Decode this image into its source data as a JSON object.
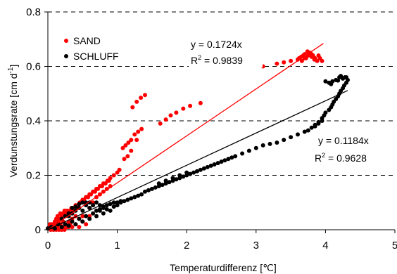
{
  "chart_data": {
    "type": "scatter",
    "title": "",
    "xlabel": "Temperaturdifferenz [℃]",
    "ylabel": "Verdunstungsrate [cm d",
    "ylabel_sup": "-1",
    "ylabel_end": "]",
    "xlim": [
      0,
      5
    ],
    "ylim": [
      0,
      0.8
    ],
    "x_ticks": [
      "0",
      "1",
      "2",
      "3",
      "4",
      "5"
    ],
    "y_ticks": [
      "0",
      "0.2",
      "0.4",
      "0.6",
      "0.8"
    ],
    "grid": "horizontal dashed",
    "legend_position": "top-left",
    "series": [
      {
        "name": "SAND",
        "color": "#ff0000",
        "points": [
          [
            0.02,
            0.01
          ],
          [
            0.03,
            0.02
          ],
          [
            0.04,
            0.0
          ],
          [
            0.05,
            0.01
          ],
          [
            0.06,
            0.02
          ],
          [
            0.07,
            0.01
          ],
          [
            0.08,
            0.0
          ],
          [
            0.1,
            0.02
          ],
          [
            0.11,
            0.01
          ],
          [
            0.12,
            0.0
          ],
          [
            0.13,
            0.02
          ],
          [
            0.14,
            0.01
          ],
          [
            0.15,
            0.03
          ],
          [
            0.16,
            0.0
          ],
          [
            0.18,
            0.02
          ],
          [
            0.2,
            0.0
          ],
          [
            0.22,
            0.01
          ],
          [
            0.24,
            0.0
          ],
          [
            0.26,
            0.02
          ],
          [
            0.28,
            0.01
          ],
          [
            0.1,
            0.03
          ],
          [
            0.12,
            0.04
          ],
          [
            0.14,
            0.05
          ],
          [
            0.16,
            0.04
          ],
          [
            0.18,
            0.06
          ],
          [
            0.2,
            0.05
          ],
          [
            0.22,
            0.06
          ],
          [
            0.24,
            0.07
          ],
          [
            0.26,
            0.06
          ],
          [
            0.28,
            0.07
          ],
          [
            0.3,
            0.06
          ],
          [
            0.32,
            0.07
          ],
          [
            0.34,
            0.08
          ],
          [
            0.36,
            0.07
          ],
          [
            0.38,
            0.08
          ],
          [
            0.4,
            0.09
          ],
          [
            0.42,
            0.08
          ],
          [
            0.44,
            0.09
          ],
          [
            0.46,
            0.1
          ],
          [
            0.48,
            0.1
          ],
          [
            0.5,
            0.11
          ],
          [
            0.52,
            0.11
          ],
          [
            0.55,
            0.12
          ],
          [
            0.58,
            0.12
          ],
          [
            0.6,
            0.13
          ],
          [
            0.62,
            0.13
          ],
          [
            0.65,
            0.14
          ],
          [
            0.68,
            0.14
          ],
          [
            0.7,
            0.15
          ],
          [
            0.72,
            0.15
          ],
          [
            0.75,
            0.16
          ],
          [
            0.78,
            0.16
          ],
          [
            0.8,
            0.17
          ],
          [
            0.83,
            0.17
          ],
          [
            0.86,
            0.18
          ],
          [
            0.88,
            0.18
          ],
          [
            0.9,
            0.19
          ],
          [
            0.95,
            0.2
          ],
          [
            1.0,
            0.21
          ],
          [
            1.03,
            0.22
          ],
          [
            0.2,
            0.04
          ],
          [
            0.25,
            0.05
          ],
          [
            0.3,
            0.03
          ],
          [
            0.35,
            0.04
          ],
          [
            0.18,
            0.02
          ],
          [
            0.22,
            0.03
          ],
          [
            0.3,
            0.01
          ],
          [
            0.32,
            0.02
          ],
          [
            0.35,
            0.01
          ],
          [
            0.4,
            0.02
          ],
          [
            0.45,
            0.01
          ],
          [
            0.5,
            0.03
          ],
          [
            0.55,
            0.02
          ],
          [
            0.6,
            0.05
          ],
          [
            0.5,
            0.05
          ],
          [
            0.45,
            0.04
          ],
          [
            0.4,
            0.05
          ],
          [
            0.6,
            0.08
          ],
          [
            0.65,
            0.1
          ],
          [
            0.7,
            0.12
          ],
          [
            0.75,
            0.13
          ],
          [
            0.8,
            0.14
          ],
          [
            0.85,
            0.15
          ],
          [
            0.9,
            0.16
          ],
          [
            1.08,
            0.3
          ],
          [
            1.12,
            0.31
          ],
          [
            1.16,
            0.32
          ],
          [
            1.2,
            0.33
          ],
          [
            1.25,
            0.35
          ],
          [
            1.3,
            0.36
          ],
          [
            1.35,
            0.37
          ],
          [
            1.1,
            0.26
          ],
          [
            1.15,
            0.27
          ],
          [
            1.2,
            0.29
          ],
          [
            1.28,
            0.33
          ],
          [
            1.62,
            0.39
          ],
          [
            1.7,
            0.405
          ],
          [
            1.77,
            0.42
          ],
          [
            1.85,
            0.43
          ],
          [
            1.95,
            0.445
          ],
          [
            2.05,
            0.455
          ],
          [
            2.2,
            0.465
          ],
          [
            1.22,
            0.45
          ],
          [
            1.28,
            0.47
          ],
          [
            1.34,
            0.485
          ],
          [
            1.4,
            0.495
          ],
          [
            3.1,
            0.6
          ],
          [
            3.3,
            0.61
          ],
          [
            3.4,
            0.615
          ],
          [
            3.5,
            0.62
          ],
          [
            3.6,
            0.625
          ],
          [
            3.62,
            0.63
          ],
          [
            3.65,
            0.635
          ],
          [
            3.68,
            0.64
          ],
          [
            3.7,
            0.645
          ],
          [
            3.72,
            0.63
          ],
          [
            3.75,
            0.64
          ],
          [
            3.78,
            0.65
          ],
          [
            3.8,
            0.635
          ],
          [
            3.82,
            0.64
          ],
          [
            3.85,
            0.63
          ],
          [
            3.88,
            0.62
          ],
          [
            3.9,
            0.64
          ],
          [
            3.92,
            0.63
          ],
          [
            3.95,
            0.62
          ],
          [
            3.74,
            0.655
          ],
          [
            3.76,
            0.65
          ],
          [
            3.7,
            0.63
          ],
          [
            3.66,
            0.62
          ],
          [
            3.8,
            0.645
          ],
          [
            3.84,
            0.625
          ]
        ],
        "trend": {
          "slope": 0.1724,
          "x_from": 0,
          "x_to": 3.97
        }
      },
      {
        "name": "SCHLUFF",
        "color": "#000000",
        "points": [
          [
            0.0,
            0.005
          ],
          [
            0.05,
            0.01
          ],
          [
            0.1,
            0.005
          ],
          [
            0.15,
            0.02
          ],
          [
            0.2,
            0.01
          ],
          [
            0.25,
            0.02
          ],
          [
            0.3,
            0.015
          ],
          [
            0.35,
            0.03
          ],
          [
            0.4,
            0.02
          ],
          [
            0.45,
            0.04
          ],
          [
            0.5,
            0.03
          ],
          [
            0.55,
            0.05
          ],
          [
            0.6,
            0.04
          ],
          [
            0.65,
            0.06
          ],
          [
            0.7,
            0.05
          ],
          [
            0.75,
            0.07
          ],
          [
            0.8,
            0.06
          ],
          [
            0.85,
            0.075
          ],
          [
            0.9,
            0.07
          ],
          [
            0.95,
            0.085
          ],
          [
            0.3,
            0.05
          ],
          [
            0.35,
            0.06
          ],
          [
            0.4,
            0.07
          ],
          [
            0.45,
            0.08
          ],
          [
            0.5,
            0.07
          ],
          [
            0.55,
            0.09
          ],
          [
            0.6,
            0.08
          ],
          [
            0.65,
            0.09
          ],
          [
            0.7,
            0.1
          ],
          [
            0.75,
            0.09
          ],
          [
            0.2,
            0.04
          ],
          [
            0.25,
            0.05
          ],
          [
            0.3,
            0.06
          ],
          [
            0.35,
            0.08
          ],
          [
            0.4,
            0.085
          ],
          [
            0.45,
            0.095
          ],
          [
            0.5,
            0.1
          ],
          [
            0.55,
            0.1
          ],
          [
            0.6,
            0.1
          ],
          [
            1.0,
            0.09
          ],
          [
            1.05,
            0.1
          ],
          [
            1.1,
            0.105
          ],
          [
            1.15,
            0.11
          ],
          [
            1.2,
            0.115
          ],
          [
            1.25,
            0.12
          ],
          [
            1.3,
            0.125
          ],
          [
            1.35,
            0.13
          ],
          [
            1.4,
            0.14
          ],
          [
            1.45,
            0.145
          ],
          [
            1.5,
            0.15
          ],
          [
            1.55,
            0.155
          ],
          [
            1.6,
            0.16
          ],
          [
            1.65,
            0.165
          ],
          [
            1.7,
            0.17
          ],
          [
            1.75,
            0.175
          ],
          [
            1.8,
            0.18
          ],
          [
            1.85,
            0.185
          ],
          [
            1.9,
            0.19
          ],
          [
            1.95,
            0.195
          ],
          [
            2.0,
            0.2
          ],
          [
            2.05,
            0.205
          ],
          [
            2.1,
            0.21
          ],
          [
            2.15,
            0.215
          ],
          [
            2.2,
            0.22
          ],
          [
            2.25,
            0.225
          ],
          [
            2.3,
            0.23
          ],
          [
            2.35,
            0.235
          ],
          [
            2.4,
            0.24
          ],
          [
            2.45,
            0.245
          ],
          [
            2.5,
            0.25
          ],
          [
            2.55,
            0.255
          ],
          [
            2.6,
            0.26
          ],
          [
            2.65,
            0.265
          ],
          [
            2.7,
            0.27
          ],
          [
            2.8,
            0.28
          ],
          [
            2.9,
            0.29
          ],
          [
            3.0,
            0.3
          ],
          [
            3.1,
            0.31
          ],
          [
            3.2,
            0.315
          ],
          [
            3.3,
            0.32
          ],
          [
            3.4,
            0.33
          ],
          [
            3.5,
            0.34
          ],
          [
            3.6,
            0.35
          ],
          [
            3.7,
            0.36
          ],
          [
            3.75,
            0.365
          ],
          [
            3.8,
            0.375
          ],
          [
            3.85,
            0.385
          ],
          [
            3.9,
            0.395
          ],
          [
            3.95,
            0.41
          ],
          [
            3.98,
            0.42
          ],
          [
            4.0,
            0.43
          ],
          [
            4.05,
            0.44
          ],
          [
            4.08,
            0.45
          ],
          [
            4.1,
            0.46
          ],
          [
            4.12,
            0.47
          ],
          [
            4.15,
            0.48
          ],
          [
            4.18,
            0.49
          ],
          [
            4.2,
            0.5
          ],
          [
            4.22,
            0.51
          ],
          [
            4.25,
            0.52
          ],
          [
            4.27,
            0.53
          ],
          [
            4.3,
            0.54
          ],
          [
            4.32,
            0.55
          ],
          [
            4.28,
            0.56
          ],
          [
            4.25,
            0.555
          ],
          [
            4.2,
            0.56
          ],
          [
            4.15,
            0.55
          ],
          [
            4.1,
            0.545
          ],
          [
            4.05,
            0.54
          ],
          [
            4.0,
            0.545
          ],
          [
            4.22,
            0.565
          ],
          [
            4.3,
            0.56
          ],
          [
            4.18,
            0.548
          ],
          [
            4.08,
            0.535
          ],
          [
            3.9,
            0.39
          ],
          [
            3.85,
            0.38
          ],
          [
            3.95,
            0.4
          ],
          [
            0.8,
            0.08
          ],
          [
            0.85,
            0.09
          ],
          [
            0.9,
            0.095
          ],
          [
            0.95,
            0.1
          ],
          [
            1.0,
            0.1
          ],
          [
            1.05,
            0.105
          ],
          [
            0.7,
            0.07
          ],
          [
            0.75,
            0.075
          ],
          [
            0.8,
            0.085
          ],
          [
            1.6,
            0.17
          ],
          [
            1.7,
            0.18
          ],
          [
            1.8,
            0.19
          ],
          [
            1.9,
            0.2
          ],
          [
            2.0,
            0.21
          ]
        ],
        "trend": {
          "slope": 0.1184,
          "x_from": 0,
          "x_to": 4.32
        }
      }
    ],
    "annotations": [
      {
        "id": "sand",
        "eq": "y = 0.1724x",
        "r2_prefix": "R",
        "r2_sup": "2",
        "r2_suffix": " = 0.9839"
      },
      {
        "id": "schluff",
        "eq": "y = 0.1184x",
        "r2_prefix": "R",
        "r2_sup": "2",
        "r2_suffix": " = 0.9628"
      }
    ]
  }
}
